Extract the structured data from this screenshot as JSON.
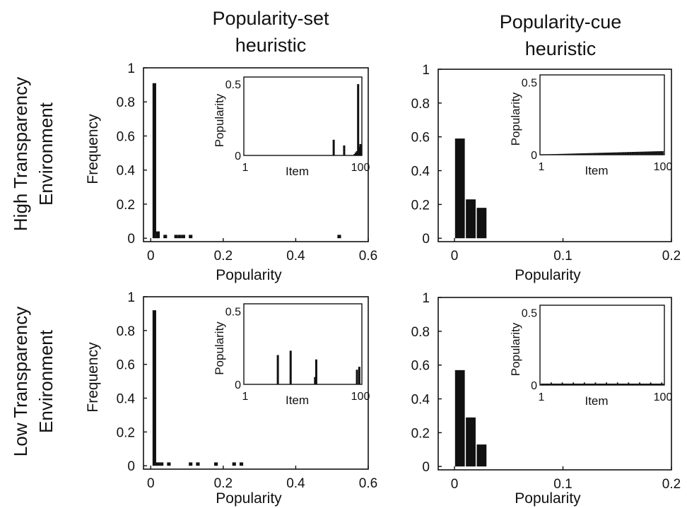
{
  "column_titles": [
    [
      "Popularity-set",
      "heuristic"
    ],
    [
      "Popularity-cue",
      "heuristic"
    ]
  ],
  "row_titles": [
    [
      "High Transparency",
      "Environment"
    ],
    [
      "Low Transparency",
      "Environment"
    ]
  ],
  "chart_data": [
    {
      "type": "bar",
      "panel": "high-transparency-popularity-set",
      "xlabel": "Popularity",
      "ylabel": "Frequency",
      "xlim": [
        -0.02,
        0.6
      ],
      "ylim": [
        -0.02,
        1.0
      ],
      "xticks": [
        0,
        0.2,
        0.4,
        0.6
      ],
      "xtick_labels": [
        "0",
        "0.2",
        "0.4",
        "0.6"
      ],
      "yticks": [
        0,
        0.2,
        0.4,
        0.6,
        0.8,
        1
      ],
      "ytick_labels": [
        "0",
        "0.2",
        "0.4",
        "0.6",
        "0.8",
        "1"
      ],
      "bar_width": 0.01,
      "bars": [
        {
          "x": 0.01,
          "y": 0.91
        },
        {
          "x": 0.02,
          "y": 0.04
        },
        {
          "x": 0.04,
          "y": 0.02
        },
        {
          "x": 0.07,
          "y": 0.02
        },
        {
          "x": 0.08,
          "y": 0.02
        },
        {
          "x": 0.09,
          "y": 0.02
        },
        {
          "x": 0.11,
          "y": 0.02
        },
        {
          "x": 0.52,
          "y": 0.02
        }
      ],
      "inset": {
        "type": "bar",
        "xlabel": "Item",
        "ylabel": "Popularity",
        "xlim": [
          1,
          100
        ],
        "ylim": [
          0,
          0.55
        ],
        "xticks": [
          1,
          100
        ],
        "xtick_labels": [
          "1",
          "100"
        ],
        "yticks": [
          0,
          0.5
        ],
        "ytick_labels": [
          "0",
          "0.5"
        ],
        "bars": [
          {
            "x": 77,
            "y": 0.11
          },
          {
            "x": 86,
            "y": 0.07
          },
          {
            "x": 95,
            "y": 0.01
          },
          {
            "x": 96,
            "y": 0.02
          },
          {
            "x": 97,
            "y": 0.03
          },
          {
            "x": 98,
            "y": 0.5
          },
          {
            "x": 99,
            "y": 0.06
          },
          {
            "x": 100,
            "y": 0.08
          }
        ]
      }
    },
    {
      "type": "bar",
      "panel": "high-transparency-popularity-cue",
      "xlabel": "Popularity",
      "ylabel": "",
      "xlim": [
        -0.015,
        0.2
      ],
      "ylim": [
        -0.02,
        1.0
      ],
      "xticks": [
        0,
        0.1,
        0.2
      ],
      "xtick_labels": [
        "0",
        "0.1",
        "0.2"
      ],
      "yticks": [
        0,
        0.2,
        0.4,
        0.6,
        0.8,
        1
      ],
      "ytick_labels": [
        "0",
        "0.2",
        "0.4",
        "0.6",
        "0.8",
        "1"
      ],
      "bar_width": 0.009,
      "bars": [
        {
          "x": 0.005,
          "y": 0.59
        },
        {
          "x": 0.015,
          "y": 0.23
        },
        {
          "x": 0.025,
          "y": 0.18
        }
      ],
      "inset": {
        "type": "bar",
        "xlabel": "Item",
        "ylabel": "Popularity",
        "xlim": [
          1,
          100
        ],
        "ylim": [
          0,
          0.55
        ],
        "xticks": [
          1,
          100
        ],
        "xtick_labels": [
          "1",
          "100"
        ],
        "yticks": [
          0,
          0.5
        ],
        "ytick_labels": [
          "0",
          "0.5"
        ],
        "profile": "rising",
        "y_start": 0.002,
        "y_end": 0.025
      }
    },
    {
      "type": "bar",
      "panel": "low-transparency-popularity-set",
      "xlabel": "Popularity",
      "ylabel": "Frequency",
      "xlim": [
        -0.02,
        0.6
      ],
      "ylim": [
        -0.02,
        1.0
      ],
      "xticks": [
        0,
        0.2,
        0.4,
        0.6
      ],
      "xtick_labels": [
        "0",
        "0.2",
        "0.4",
        "0.6"
      ],
      "yticks": [
        0,
        0.2,
        0.4,
        0.6,
        0.8,
        1
      ],
      "ytick_labels": [
        "0",
        "0.2",
        "0.4",
        "0.6",
        "0.8",
        "1"
      ],
      "bar_width": 0.01,
      "bars": [
        {
          "x": 0.01,
          "y": 0.92
        },
        {
          "x": 0.02,
          "y": 0.02
        },
        {
          "x": 0.03,
          "y": 0.02
        },
        {
          "x": 0.05,
          "y": 0.02
        },
        {
          "x": 0.11,
          "y": 0.02
        },
        {
          "x": 0.13,
          "y": 0.02
        },
        {
          "x": 0.18,
          "y": 0.02
        },
        {
          "x": 0.23,
          "y": 0.02
        },
        {
          "x": 0.25,
          "y": 0.02
        }
      ],
      "inset": {
        "type": "bar",
        "xlabel": "Item",
        "ylabel": "Popularity",
        "xlim": [
          1,
          100
        ],
        "ylim": [
          0,
          0.55
        ],
        "xticks": [
          1,
          100
        ],
        "xtick_labels": [
          "1",
          "100"
        ],
        "yticks": [
          0,
          0.5
        ],
        "ytick_labels": [
          "0",
          "0.5"
        ],
        "bars": [
          {
            "x": 29,
            "y": 0.2
          },
          {
            "x": 40,
            "y": 0.23
          },
          {
            "x": 61,
            "y": 0.05
          },
          {
            "x": 62,
            "y": 0.17
          },
          {
            "x": 97,
            "y": 0.1
          },
          {
            "x": 99,
            "y": 0.12
          }
        ]
      }
    },
    {
      "type": "bar",
      "panel": "low-transparency-popularity-cue",
      "xlabel": "Popularity",
      "ylabel": "",
      "xlim": [
        -0.015,
        0.2
      ],
      "ylim": [
        -0.02,
        1.0
      ],
      "xticks": [
        0,
        0.1,
        0.2
      ],
      "xtick_labels": [
        "0",
        "0.1",
        "0.2"
      ],
      "yticks": [
        0,
        0.2,
        0.4,
        0.6,
        0.8,
        1
      ],
      "ytick_labels": [
        "0",
        "0.2",
        "0.4",
        "0.6",
        "0.8",
        "1"
      ],
      "bar_width": 0.009,
      "bars": [
        {
          "x": 0.005,
          "y": 0.57
        },
        {
          "x": 0.015,
          "y": 0.29
        },
        {
          "x": 0.025,
          "y": 0.13
        }
      ],
      "inset": {
        "type": "bar",
        "xlabel": "Item",
        "ylabel": "Popularity",
        "xlim": [
          1,
          100
        ],
        "ylim": [
          0,
          0.55
        ],
        "xticks": [
          1,
          100
        ],
        "xtick_labels": [
          "1",
          "100"
        ],
        "yticks": [
          0,
          0.5
        ],
        "ytick_labels": [
          "0",
          "0.5"
        ],
        "profile": "flat",
        "y_start": 0.01,
        "y_end": 0.01
      }
    }
  ]
}
